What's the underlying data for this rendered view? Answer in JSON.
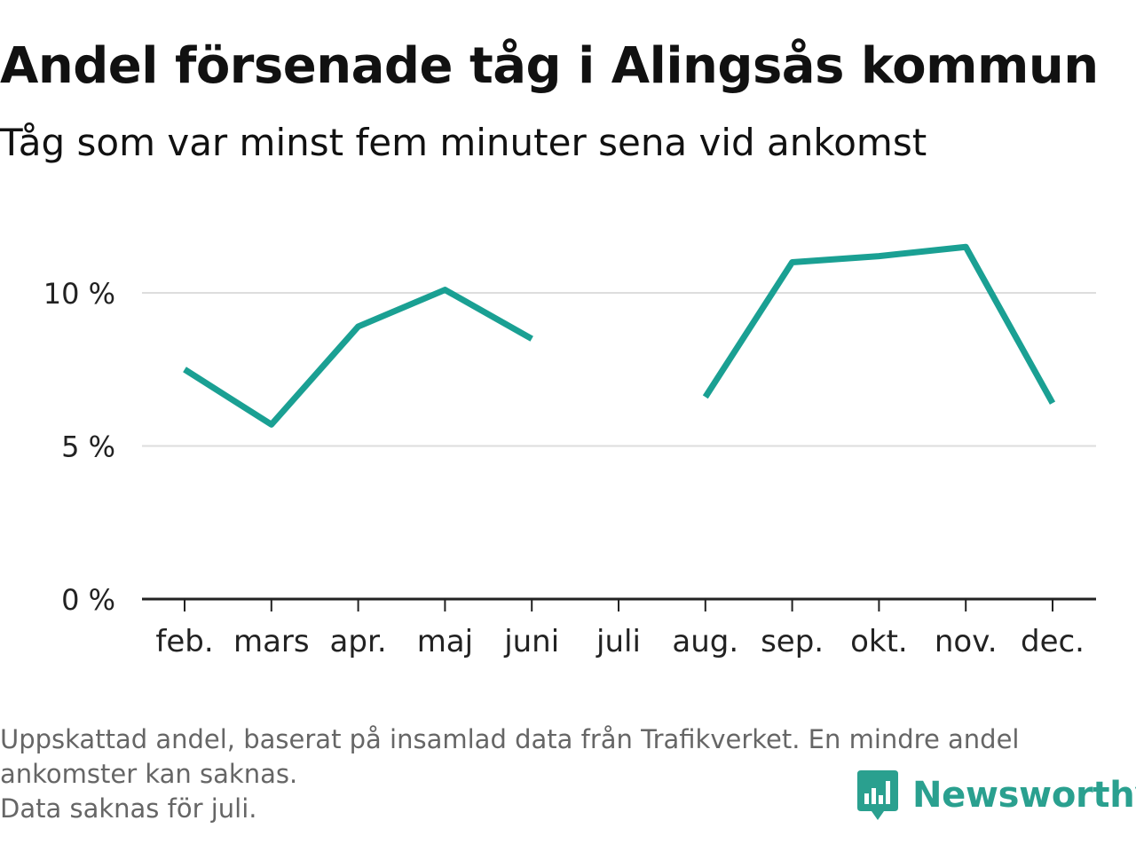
{
  "title": "Andel försenade tåg i Alingsås kommun",
  "subtitle": "Tåg som var minst fem minuter sena vid ankomst",
  "footnote": {
    "line1": "Uppskattad andel, baserat på insamlad data från Trafikverket. En mindre andel",
    "line2": "ankomster kan saknas.",
    "line3": "Data saknas för juli."
  },
  "brand": {
    "name": "Newsworthy",
    "icon": "bar-chart-speech-icon"
  },
  "colors": {
    "line": "#1aa093",
    "grid": "#dddddd",
    "axis": "#222222",
    "brand": "#2aa08f"
  },
  "chart_data": {
    "type": "line",
    "title": "Andel försenade tåg i Alingsås kommun",
    "subtitle": "Tåg som var minst fem minuter sena vid ankomst",
    "categories": [
      "feb.",
      "mars",
      "apr.",
      "maj",
      "juni",
      "juli",
      "aug.",
      "sep.",
      "okt.",
      "nov.",
      "dec."
    ],
    "series": [
      {
        "values": [
          7.5,
          5.7,
          8.9,
          10.1,
          8.5,
          null,
          6.6,
          11.0,
          11.2,
          11.5,
          6.4
        ]
      }
    ],
    "yticks": [
      0,
      5,
      10
    ],
    "ytick_labels": [
      "0 %",
      "5 %",
      "10 %"
    ],
    "ylim": [
      0,
      12
    ],
    "grid": true,
    "legend": "none"
  }
}
